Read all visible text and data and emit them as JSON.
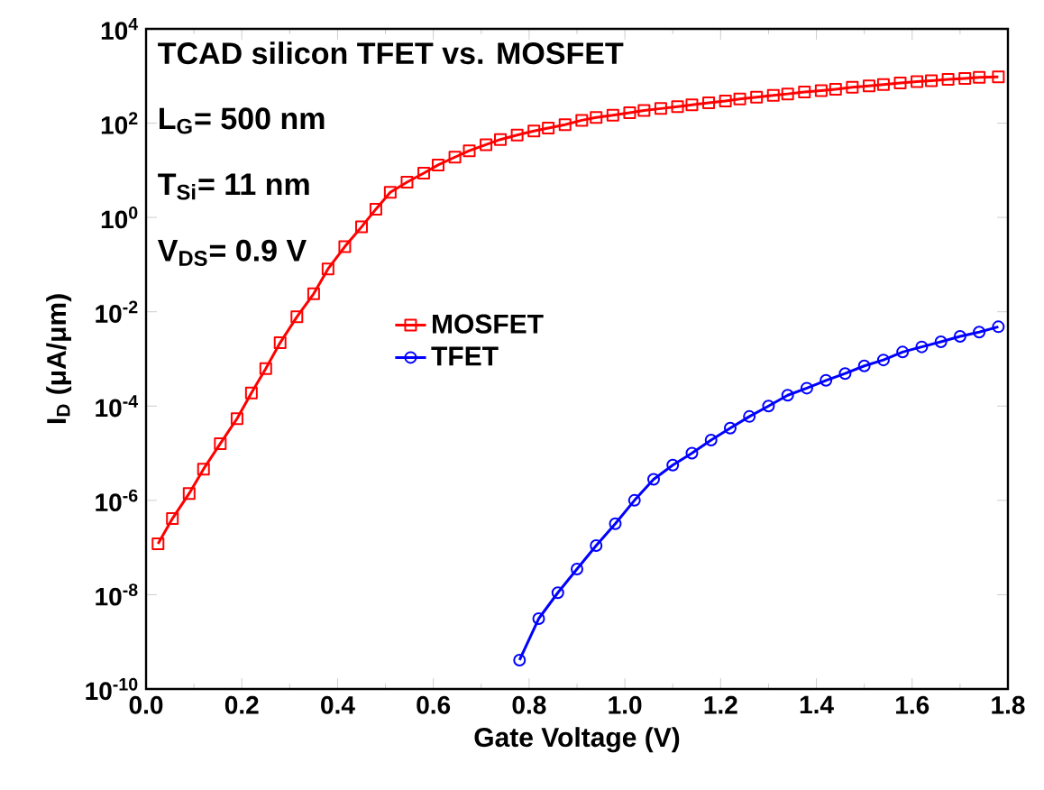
{
  "chart_data": {
    "type": "line",
    "xlabel": "Gate Voltage (V)",
    "ylabel": "I$_{D}$ (μA/μm)",
    "annotations": [
      "TCAD silicon TFET vs. MOSFET",
      "L$_{G}$= 500 nm",
      "T$_{Si}$= 11 nm",
      "V$_{DS}$= 0.9 V"
    ],
    "log": "y",
    "xlim": [
      0,
      1.8
    ],
    "ylim": [
      1e-10,
      10000
    ],
    "xticks": [
      {
        "value": 0,
        "label": "0.0"
      },
      {
        "value": 0.2,
        "label": "0.2"
      },
      {
        "value": 0.4,
        "label": "0.4"
      },
      {
        "value": 0.6,
        "label": "0.6"
      },
      {
        "value": 0.8,
        "label": "0.8"
      },
      {
        "value": 1.0,
        "label": "1.0"
      },
      {
        "value": 1.2,
        "label": "1.2"
      },
      {
        "value": 1.4,
        "label": "1.4"
      },
      {
        "value": 1.6,
        "label": "1.6"
      },
      {
        "value": 1.8,
        "label": "1.8"
      }
    ],
    "yticks": [
      {
        "value": 1e-10,
        "label": "10$^{-10}$"
      },
      {
        "value": 1e-08,
        "label": "10$^{-8}$"
      },
      {
        "value": 1e-06,
        "label": "10$^{-6}$"
      },
      {
        "value": 0.0001,
        "label": "10$^{-4}$"
      },
      {
        "value": 0.01,
        "label": "10$^{-2}$"
      },
      {
        "value": 1,
        "label": "10$^{0}$"
      },
      {
        "value": 100,
        "label": "10$^{2}$"
      },
      {
        "value": 10000,
        "label": "10$^{4}$"
      }
    ],
    "legend": "center",
    "grid": false,
    "series": [
      {
        "name": "MOSFET",
        "color": "#ff0000",
        "marker": "square",
        "x": [
          0.025,
          0.055,
          0.09,
          0.12,
          0.155,
          0.19,
          0.22,
          0.25,
          0.28,
          0.315,
          0.35,
          0.38,
          0.415,
          0.45,
          0.48,
          0.51,
          0.545,
          0.58,
          0.61,
          0.645,
          0.675,
          0.71,
          0.74,
          0.775,
          0.81,
          0.84,
          0.875,
          0.91,
          0.94,
          0.975,
          1.01,
          1.04,
          1.075,
          1.11,
          1.14,
          1.175,
          1.21,
          1.24,
          1.275,
          1.31,
          1.34,
          1.375,
          1.41,
          1.44,
          1.475,
          1.51,
          1.54,
          1.575,
          1.61,
          1.64,
          1.675,
          1.71,
          1.74,
          1.78
        ],
        "values": [
          1.2e-07,
          4.1e-07,
          1.4e-06,
          4.6e-06,
          1.6e-05,
          5.4e-05,
          0.00019,
          0.00062,
          0.0022,
          0.0078,
          0.024,
          0.081,
          0.24,
          0.63,
          1.5,
          3.4,
          5.6,
          8.7,
          13,
          19,
          26,
          35,
          45,
          56,
          68,
          79,
          93,
          115,
          132,
          148,
          166,
          186,
          204,
          224,
          245,
          269,
          295,
          324,
          355,
          389,
          417,
          457,
          490,
          525,
          575,
          617,
          661,
          708,
          759,
          794,
          851,
          891,
          933,
          955
        ]
      },
      {
        "name": "TFET",
        "color": "#0000ff",
        "marker": "circle",
        "x": [
          0.78,
          0.82,
          0.86,
          0.9,
          0.94,
          0.98,
          1.02,
          1.06,
          1.1,
          1.14,
          1.18,
          1.22,
          1.26,
          1.3,
          1.34,
          1.38,
          1.42,
          1.46,
          1.5,
          1.54,
          1.58,
          1.62,
          1.66,
          1.7,
          1.74,
          1.78
        ],
        "values": [
          4.1e-10,
          3.1e-09,
          1.1e-08,
          3.5e-08,
          1.1e-07,
          3.2e-07,
          1e-06,
          2.8e-06,
          5.6e-06,
          1e-05,
          1.9e-05,
          3.4e-05,
          6e-05,
          0.0001,
          0.00017,
          0.00024,
          0.00035,
          0.00049,
          0.00071,
          0.00095,
          0.0014,
          0.0018,
          0.0023,
          0.003,
          0.0037,
          0.0048
        ]
      }
    ]
  }
}
